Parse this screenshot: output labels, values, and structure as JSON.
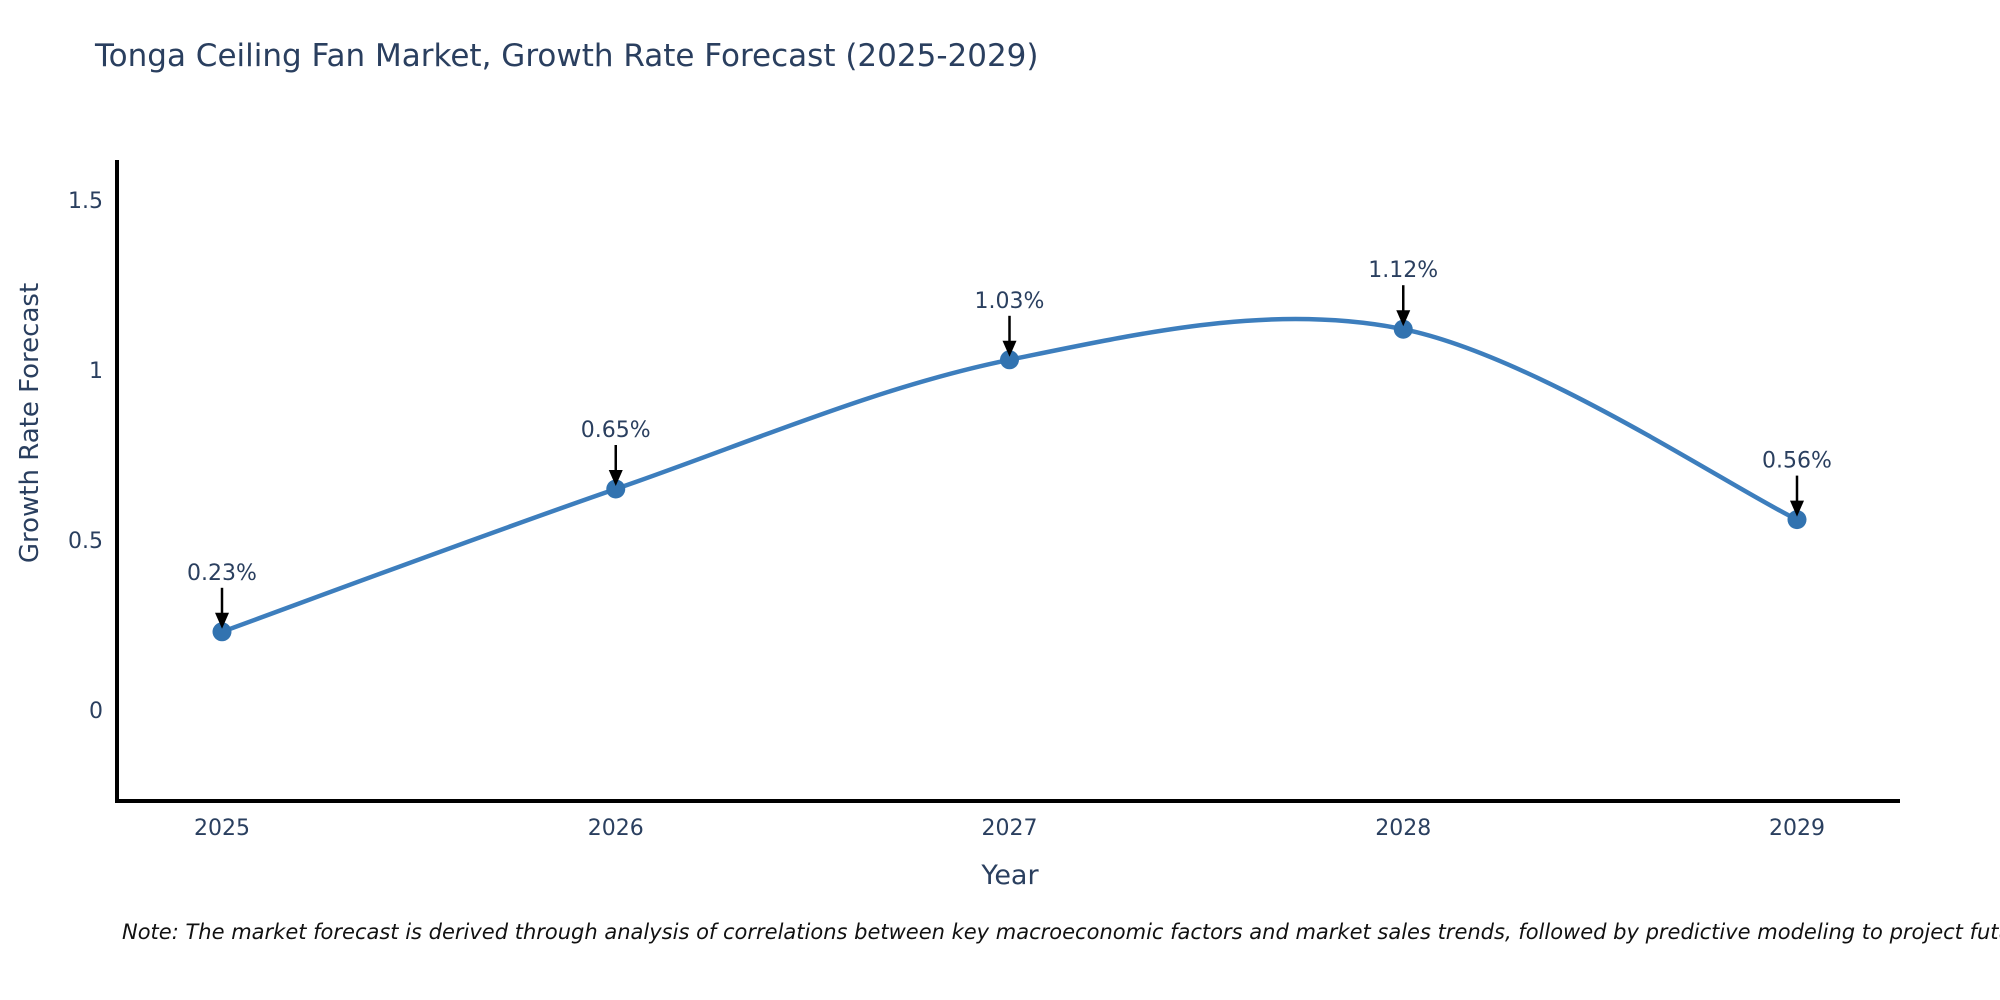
{
  "chart_data": {
    "type": "line",
    "title": "Tonga Ceiling Fan Market, Growth Rate Forecast (2025-2029)",
    "x": [
      "2025",
      "2026",
      "2027",
      "2028",
      "2029"
    ],
    "values": [
      0.23,
      0.65,
      1.03,
      1.12,
      0.56
    ],
    "point_labels": [
      "0.23%",
      "0.65%",
      "1.03%",
      "1.12%",
      "0.56%"
    ],
    "xlabel": "Year",
    "ylabel": "Growth Rate Forecast",
    "y_ticks": [
      "0",
      "0.5",
      "1",
      "1.5"
    ],
    "y_tick_values": [
      0,
      0.5,
      1,
      1.5
    ],
    "ylim": [
      -0.27,
      1.62
    ],
    "line_shape": "spline",
    "grid": false,
    "legend": "none",
    "colors": {
      "line": "#3d7ebd",
      "marker": "#3273b0",
      "axis": "#000000",
      "text": "#2a3f5f",
      "arrow": "#000000",
      "background": "#ffffff"
    }
  },
  "note": {
    "text": "Note: The market forecast is derived through analysis of correlations between key macroeconomic factors and market sales trends, followed by predictive modeling to project future sales"
  }
}
